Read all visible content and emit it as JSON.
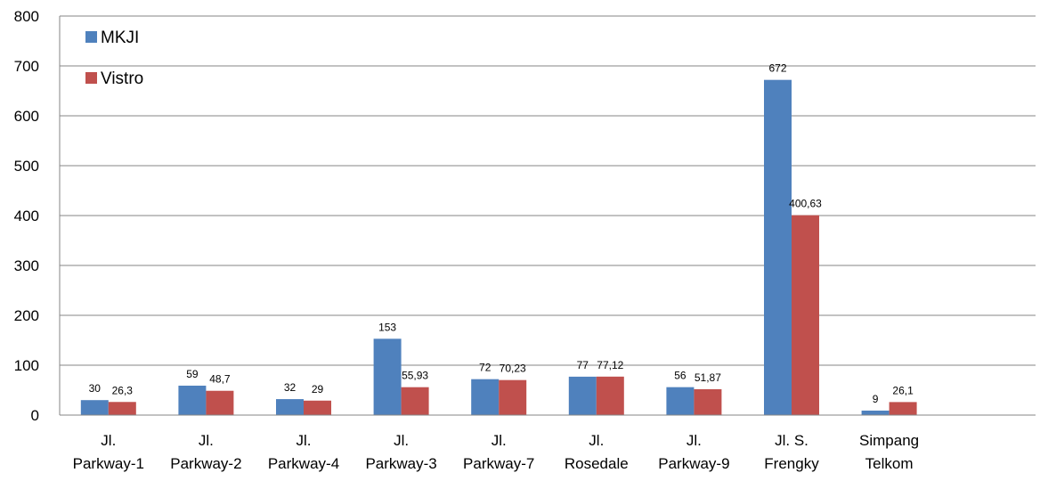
{
  "chart_data": {
    "type": "bar",
    "categories": [
      [
        "Jl.",
        "Parkway-1"
      ],
      [
        "Jl.",
        "Parkway-2"
      ],
      [
        "Jl.",
        "Parkway-4"
      ],
      [
        "Jl.",
        "Parkway-3"
      ],
      [
        "Jl.",
        "Parkway-7"
      ],
      [
        "Jl.",
        "Rosedale"
      ],
      [
        "Jl.",
        "Parkway-9"
      ],
      [
        "Jl. S.",
        "Frengky"
      ],
      [
        "Simpang",
        "Telkom"
      ]
    ],
    "series": [
      {
        "name": "MKJI",
        "color": "#4f81bd",
        "values": [
          30,
          59,
          32,
          153,
          72,
          77,
          56,
          672,
          9
        ],
        "labels": [
          "30",
          "59",
          "32",
          "153",
          "72",
          "77",
          "56",
          "672",
          "9"
        ]
      },
      {
        "name": "Vistro",
        "color": "#c0504d",
        "values": [
          26.3,
          48.7,
          29,
          55.93,
          70.23,
          77.12,
          51.87,
          400.63,
          26.1
        ],
        "labels": [
          "26,3",
          "48,7",
          "29",
          "55,93",
          "70,23",
          "77,12",
          "51,87",
          "400,63",
          "26,1"
        ]
      }
    ],
    "ylim": [
      0,
      800
    ],
    "yticks": [
      0,
      100,
      200,
      300,
      400,
      500,
      600,
      700,
      800
    ],
    "grid": true,
    "legend": "top-left",
    "title": "",
    "xlabel": "",
    "ylabel": ""
  }
}
